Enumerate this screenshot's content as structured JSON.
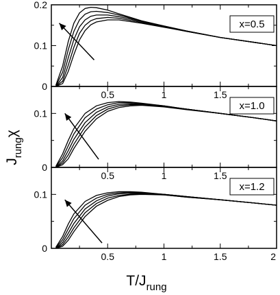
{
  "chart_data": [
    {
      "type": "line",
      "label": "x=0.5",
      "xlim": [
        0,
        2
      ],
      "ylim": [
        0,
        0.2
      ],
      "yticks": [
        0,
        0.1,
        0.2
      ],
      "ytick_labels": [
        "0",
        "0.1",
        "0.2"
      ],
      "xticks": [
        0.5,
        1,
        1.5
      ],
      "xtick_labels": [
        "0.5",
        "1",
        "1.5"
      ],
      "arrow": {
        "from": [
          0.38,
          0.065
        ],
        "to": [
          0.07,
          0.155
        ]
      },
      "series": [
        {
          "x": [
            0.04,
            0.1,
            0.15,
            0.2,
            0.25,
            0.3,
            0.35,
            0.4,
            0.5,
            0.6,
            0.8,
            1.0,
            1.2,
            1.5,
            1.8,
            2.0
          ],
          "y": [
            0.003,
            0.05,
            0.11,
            0.155,
            0.18,
            0.191,
            0.194,
            0.193,
            0.187,
            0.178,
            0.161,
            0.148,
            0.136,
            0.12,
            0.108,
            0.1
          ]
        },
        {
          "x": [
            0.04,
            0.1,
            0.15,
            0.2,
            0.25,
            0.3,
            0.35,
            0.4,
            0.5,
            0.6,
            0.8,
            1.0,
            1.2,
            1.5,
            1.8,
            2.0
          ],
          "y": [
            0.001,
            0.035,
            0.09,
            0.135,
            0.163,
            0.177,
            0.183,
            0.184,
            0.181,
            0.175,
            0.16,
            0.148,
            0.136,
            0.12,
            0.108,
            0.1
          ]
        },
        {
          "x": [
            0.04,
            0.1,
            0.15,
            0.2,
            0.25,
            0.3,
            0.35,
            0.4,
            0.5,
            0.6,
            0.8,
            1.0,
            1.2,
            1.5,
            1.8,
            2.0
          ],
          "y": [
            0.0,
            0.022,
            0.07,
            0.115,
            0.146,
            0.163,
            0.172,
            0.175,
            0.175,
            0.171,
            0.159,
            0.147,
            0.136,
            0.12,
            0.108,
            0.1
          ]
        },
        {
          "x": [
            0.04,
            0.1,
            0.15,
            0.2,
            0.25,
            0.3,
            0.35,
            0.4,
            0.5,
            0.6,
            0.8,
            1.0,
            1.2,
            1.5,
            1.8,
            2.0
          ],
          "y": [
            0.0,
            0.013,
            0.052,
            0.096,
            0.13,
            0.15,
            0.161,
            0.166,
            0.169,
            0.167,
            0.157,
            0.146,
            0.135,
            0.12,
            0.108,
            0.1
          ]
        },
        {
          "x": [
            0.04,
            0.1,
            0.15,
            0.2,
            0.25,
            0.3,
            0.35,
            0.4,
            0.5,
            0.6,
            0.8,
            1.0,
            1.2,
            1.5,
            1.8,
            2.0
          ],
          "y": [
            0.0,
            0.007,
            0.037,
            0.078,
            0.114,
            0.137,
            0.151,
            0.158,
            0.163,
            0.163,
            0.155,
            0.145,
            0.135,
            0.12,
            0.108,
            0.1
          ]
        }
      ]
    },
    {
      "type": "line",
      "label": "x=1.0",
      "xlim": [
        0,
        2
      ],
      "ylim": [
        0,
        0.15
      ],
      "yticks": [
        0,
        0.1
      ],
      "ytick_labels": [
        "0",
        "0.1"
      ],
      "xticks": [
        0.5,
        1,
        1.5
      ],
      "xtick_labels": [
        "0.5",
        "1",
        "1.5"
      ],
      "arrow": {
        "from": [
          0.42,
          0.015
        ],
        "to": [
          0.12,
          0.1
        ]
      },
      "series": [
        {
          "x": [
            0.04,
            0.1,
            0.15,
            0.2,
            0.3,
            0.4,
            0.5,
            0.6,
            0.7,
            0.8,
            1.0,
            1.2,
            1.5,
            1.8,
            2.0
          ],
          "y": [
            0.002,
            0.025,
            0.05,
            0.072,
            0.1,
            0.114,
            0.12,
            0.122,
            0.121,
            0.119,
            0.114,
            0.108,
            0.1,
            0.092,
            0.086
          ]
        },
        {
          "x": [
            0.04,
            0.1,
            0.15,
            0.2,
            0.3,
            0.4,
            0.5,
            0.6,
            0.7,
            0.8,
            1.0,
            1.2,
            1.5,
            1.8,
            2.0
          ],
          "y": [
            0.001,
            0.018,
            0.04,
            0.062,
            0.092,
            0.108,
            0.116,
            0.12,
            0.12,
            0.118,
            0.114,
            0.108,
            0.1,
            0.092,
            0.086
          ]
        },
        {
          "x": [
            0.04,
            0.1,
            0.15,
            0.2,
            0.3,
            0.4,
            0.5,
            0.6,
            0.7,
            0.8,
            1.0,
            1.2,
            1.5,
            1.8,
            2.0
          ],
          "y": [
            0.0,
            0.012,
            0.031,
            0.052,
            0.083,
            0.102,
            0.112,
            0.117,
            0.118,
            0.117,
            0.113,
            0.108,
            0.1,
            0.092,
            0.086
          ]
        },
        {
          "x": [
            0.04,
            0.1,
            0.15,
            0.2,
            0.3,
            0.4,
            0.5,
            0.6,
            0.7,
            0.8,
            1.0,
            1.2,
            1.5,
            1.8,
            2.0
          ],
          "y": [
            0.0,
            0.008,
            0.023,
            0.043,
            0.075,
            0.096,
            0.108,
            0.114,
            0.116,
            0.116,
            0.113,
            0.108,
            0.1,
            0.092,
            0.086
          ]
        },
        {
          "x": [
            0.04,
            0.1,
            0.15,
            0.2,
            0.3,
            0.4,
            0.5,
            0.6,
            0.7,
            0.8,
            1.0,
            1.2,
            1.5,
            1.8,
            2.0
          ],
          "y": [
            0.0,
            0.005,
            0.016,
            0.035,
            0.067,
            0.09,
            0.104,
            0.111,
            0.114,
            0.115,
            0.112,
            0.107,
            0.1,
            0.092,
            0.086
          ]
        }
      ]
    },
    {
      "type": "line",
      "label": "x=1.2",
      "xlim": [
        0,
        2
      ],
      "ylim": [
        0,
        0.15
      ],
      "yticks": [
        0,
        0.1
      ],
      "ytick_labels": [
        "0",
        "0.1"
      ],
      "xticks": [
        0.5,
        1,
        1.5,
        2
      ],
      "xtick_labels": [
        "0.5",
        "1",
        "1.5",
        "2"
      ],
      "arrow": {
        "from": [
          0.45,
          0.01
        ],
        "to": [
          0.12,
          0.09
        ]
      },
      "series": [
        {
          "x": [
            0.04,
            0.1,
            0.15,
            0.2,
            0.3,
            0.4,
            0.5,
            0.6,
            0.7,
            0.8,
            1.0,
            1.2,
            1.5,
            1.8,
            2.0
          ],
          "y": [
            0.002,
            0.022,
            0.045,
            0.064,
            0.087,
            0.098,
            0.103,
            0.105,
            0.105,
            0.104,
            0.1,
            0.096,
            0.09,
            0.084,
            0.08
          ]
        },
        {
          "x": [
            0.04,
            0.1,
            0.15,
            0.2,
            0.3,
            0.4,
            0.5,
            0.6,
            0.7,
            0.8,
            1.0,
            1.2,
            1.5,
            1.8,
            2.0
          ],
          "y": [
            0.001,
            0.016,
            0.036,
            0.055,
            0.08,
            0.093,
            0.1,
            0.103,
            0.104,
            0.103,
            0.1,
            0.096,
            0.09,
            0.084,
            0.08
          ]
        },
        {
          "x": [
            0.04,
            0.1,
            0.15,
            0.2,
            0.3,
            0.4,
            0.5,
            0.6,
            0.7,
            0.8,
            1.0,
            1.2,
            1.5,
            1.8,
            2.0
          ],
          "y": [
            0.0,
            0.011,
            0.028,
            0.046,
            0.073,
            0.088,
            0.097,
            0.101,
            0.102,
            0.102,
            0.1,
            0.096,
            0.09,
            0.084,
            0.08
          ]
        },
        {
          "x": [
            0.04,
            0.1,
            0.15,
            0.2,
            0.3,
            0.4,
            0.5,
            0.6,
            0.7,
            0.8,
            1.0,
            1.2,
            1.5,
            1.8,
            2.0
          ],
          "y": [
            0.0,
            0.007,
            0.021,
            0.038,
            0.066,
            0.083,
            0.093,
            0.098,
            0.1,
            0.101,
            0.099,
            0.095,
            0.09,
            0.084,
            0.08
          ]
        },
        {
          "x": [
            0.04,
            0.1,
            0.15,
            0.2,
            0.3,
            0.4,
            0.5,
            0.6,
            0.7,
            0.8,
            1.0,
            1.2,
            1.5,
            1.8,
            2.0
          ],
          "y": [
            0.0,
            0.004,
            0.015,
            0.031,
            0.059,
            0.078,
            0.089,
            0.096,
            0.099,
            0.1,
            0.099,
            0.095,
            0.09,
            0.084,
            0.08
          ]
        }
      ]
    }
  ],
  "xlabel": {
    "base": "T/J",
    "sub": "rung"
  },
  "ylabel": {
    "base": "J",
    "sub": "rung",
    "symbol": "χ"
  }
}
